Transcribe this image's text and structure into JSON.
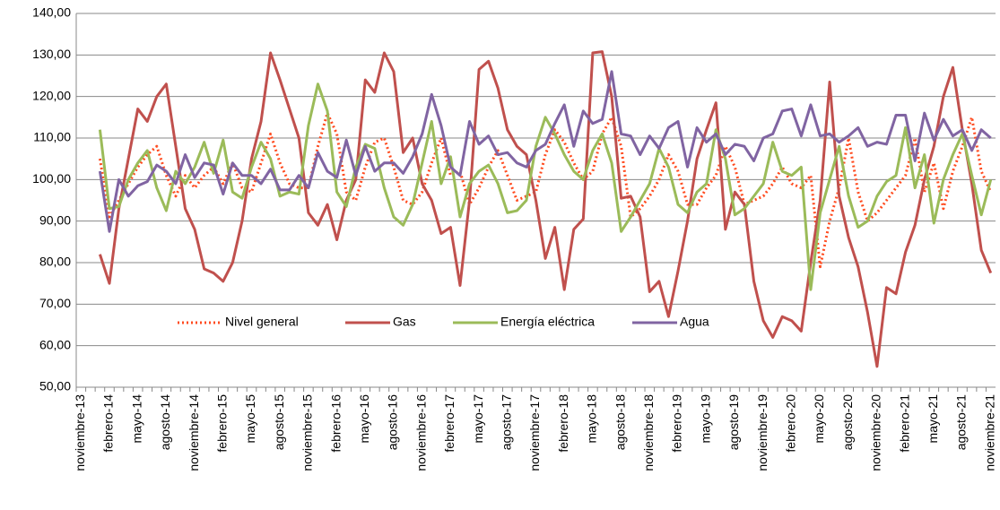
{
  "chart_data": {
    "type": "line",
    "categories": [
      "noviembre-13",
      null,
      null,
      "febrero-14",
      null,
      null,
      "mayo-14",
      null,
      null,
      "agosto-14",
      null,
      null,
      "noviembre-14",
      null,
      null,
      "febrero-15",
      null,
      null,
      "mayo-15",
      null,
      null,
      "agosto-15",
      null,
      null,
      "noviembre-15",
      null,
      null,
      "febrero-16",
      null,
      null,
      "mayo-16",
      null,
      null,
      "agosto-16",
      null,
      null,
      "noviembre-16",
      null,
      null,
      "febrero-17",
      null,
      null,
      "mayo-17",
      null,
      null,
      "agosto-17",
      null,
      null,
      "noviembre-17",
      null,
      null,
      "febrero-18",
      null,
      null,
      "mayo-18",
      null,
      null,
      "agosto-18",
      null,
      null,
      "noviembre-18",
      null,
      null,
      "febrero-19",
      null,
      null,
      "mayo-19",
      null,
      null,
      "agosto-19",
      null,
      null,
      "noviembre-19",
      null,
      null,
      "febrero-20",
      null,
      null,
      "mayo-20",
      null,
      null,
      "agosto-20",
      null,
      null,
      "noviembre-20",
      null,
      null,
      "febrero-21",
      null,
      null,
      "mayo-21",
      null,
      null,
      "agosto-21",
      null,
      null,
      "noviembre-21"
    ],
    "series": [
      {
        "name": "Nivel general",
        "color": "#ff4b1f",
        "dash": true,
        "values": [
          null,
          null,
          105,
          91,
          95,
          99,
          103,
          106,
          108,
          101,
          96,
          101,
          98,
          101,
          103,
          99,
          104,
          98,
          97,
          104,
          111,
          104,
          99,
          98,
          98,
          108,
          116,
          111,
          97,
          95,
          103,
          109,
          110,
          103,
          95,
          94,
          97,
          104,
          110,
          101,
          102,
          94,
          98,
          103,
          107,
          101,
          95,
          96,
          97,
          106,
          112,
          109,
          104,
          100,
          102,
          111,
          115,
          108,
          91,
          93,
          96,
          100,
          106,
          102,
          94,
          94,
          98,
          101,
          108,
          103,
          94,
          95,
          96,
          99,
          103,
          99,
          98,
          101,
          79,
          90,
          98,
          110,
          97,
          90,
          92,
          95,
          98,
          101,
          110,
          97,
          104,
          93,
          102,
          108,
          115,
          102,
          97
        ]
      },
      {
        "name": "Gas",
        "color": "#c0504d",
        "dash": false,
        "values": [
          null,
          null,
          82,
          75,
          93,
          105,
          117,
          114,
          120,
          123,
          108,
          93,
          88,
          78.5,
          77.5,
          75.5,
          80,
          90,
          105,
          114,
          130.5,
          124,
          117,
          110,
          92,
          89,
          94,
          85.5,
          95,
          100,
          124,
          121,
          130.5,
          126,
          106.5,
          110,
          99,
          95,
          87,
          88.5,
          74.5,
          95,
          126.5,
          128.5,
          122,
          112,
          108,
          106,
          95,
          81,
          88.5,
          73.5,
          88,
          90.5,
          130.5,
          130.8,
          120,
          95.5,
          96,
          91,
          73,
          75.5,
          67,
          78,
          90,
          105,
          112,
          118.5,
          88,
          97,
          94,
          75.5,
          66,
          62,
          67,
          66,
          63.5,
          80,
          95,
          123.5,
          96,
          86,
          79,
          68,
          55,
          74,
          72.5,
          82.5,
          89,
          100,
          108,
          120,
          127,
          112,
          99,
          83,
          77.5
        ]
      },
      {
        "name": "Energía eléctrica",
        "color": "#9bbb59",
        "dash": false,
        "values": [
          null,
          null,
          112,
          93,
          93.5,
          100,
          104,
          107,
          98,
          92.5,
          102,
          99,
          103,
          109,
          101.5,
          109.5,
          97,
          95.5,
          103,
          109,
          105,
          96,
          97,
          96.5,
          113,
          123,
          116.5,
          97,
          93.5,
          103,
          108.5,
          107.5,
          98,
          91,
          89,
          94,
          104,
          114,
          99,
          105.5,
          91,
          99,
          102,
          103.5,
          99,
          92,
          92.5,
          95,
          108,
          115,
          111,
          106,
          102,
          100,
          107,
          111,
          104,
          87.5,
          91,
          95,
          99,
          107.5,
          103,
          94,
          92,
          97,
          99,
          112,
          105,
          91.5,
          93,
          96,
          99,
          109,
          102,
          101,
          103,
          73.5,
          92,
          100,
          108,
          96,
          88.5,
          90,
          96,
          99.5,
          101,
          112.5,
          98,
          106,
          89.5,
          100,
          106,
          111,
          101,
          91.5,
          100
        ]
      },
      {
        "name": "Agua",
        "color": "#8064a2",
        "dash": false,
        "values": [
          null,
          null,
          102,
          87.5,
          100,
          96,
          98.5,
          99.5,
          103.5,
          102,
          99,
          106,
          100.5,
          104,
          103.5,
          96.5,
          104,
          101,
          101,
          99,
          102.5,
          97.5,
          97.5,
          101,
          98,
          106.5,
          102,
          100.5,
          109.5,
          101,
          108,
          102,
          104,
          104,
          101.5,
          105.5,
          111,
          120.5,
          113,
          103,
          101,
          114,
          108.5,
          110.5,
          106,
          106.5,
          104,
          103,
          107,
          108.5,
          113.5,
          118,
          108,
          116.5,
          113.5,
          114.5,
          126,
          111,
          110.5,
          106,
          110.5,
          107.5,
          112.5,
          114,
          103,
          112.5,
          109,
          111,
          106,
          108.5,
          108,
          104.5,
          110,
          111,
          116.5,
          117,
          110.5,
          118,
          110.5,
          111,
          109,
          110.5,
          112.5,
          108,
          109,
          108.5,
          115.5,
          115.5,
          104.5,
          116,
          109.5,
          114.5,
          110.5,
          112,
          107,
          112,
          110
        ]
      }
    ],
    "ylim": [
      50,
      140
    ],
    "yticks": [
      {
        "value": 50,
        "label": "50,00"
      },
      {
        "value": 60,
        "label": "60,00"
      },
      {
        "value": 70,
        "label": "70,00"
      },
      {
        "value": 80,
        "label": "80,00"
      },
      {
        "value": 90,
        "label": "90,00"
      },
      {
        "value": 100,
        "label": "100,00"
      },
      {
        "value": 110,
        "label": "110,00"
      },
      {
        "value": 120,
        "label": "120,00"
      },
      {
        "value": 130,
        "label": "130,00"
      },
      {
        "value": 140,
        "label": "140,00"
      }
    ],
    "grid": true
  }
}
